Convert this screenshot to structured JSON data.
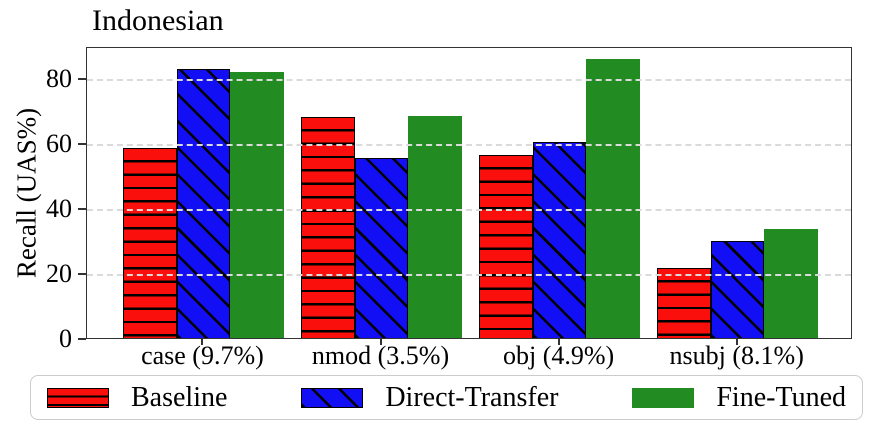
{
  "chart_data": {
    "type": "bar",
    "title": "Indonesian",
    "xlabel": "",
    "ylabel": "Recall (UAS%)",
    "categories": [
      "case (9.7%)",
      "nmod (3.5%)",
      "obj (4.9%)",
      "nsubj (8.1%)"
    ],
    "series": [
      {
        "name": "Baseline",
        "color": "#fb0f0c",
        "hatch": "horizontal",
        "values": [
          58.5,
          68.0,
          56.5,
          21.5
        ]
      },
      {
        "name": "Direct-Transfer",
        "color": "#120ff5",
        "hatch": "diagonal",
        "values": [
          83.0,
          55.5,
          60.5,
          30.0
        ]
      },
      {
        "name": "Fine-Tuned",
        "color": "#228b22",
        "hatch": "none",
        "values": [
          82.0,
          68.5,
          86.0,
          33.5
        ]
      }
    ],
    "ylim": [
      0,
      90
    ],
    "yticks": [
      0,
      20,
      40,
      60,
      80
    ],
    "grid": "horizontal-dashed-above-bars",
    "legend_position": "bottom"
  }
}
